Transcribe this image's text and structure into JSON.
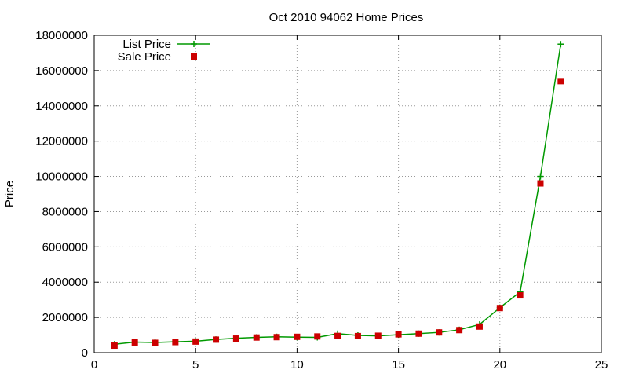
{
  "chart_data": {
    "type": "line",
    "title": "Oct 2010 94062 Home Prices",
    "xlabel": "",
    "ylabel": "Price",
    "xlim": [
      0,
      25
    ],
    "ylim": [
      0,
      18000000
    ],
    "xticks": [
      0,
      5,
      10,
      15,
      20,
      25
    ],
    "yticks": [
      0,
      2000000,
      4000000,
      6000000,
      8000000,
      10000000,
      12000000,
      14000000,
      16000000,
      18000000
    ],
    "grid": true,
    "legend_position": "top-left",
    "series": [
      {
        "name": "List Price",
        "style": "line-plus",
        "color": "#009900",
        "x": [
          1,
          2,
          3,
          4,
          5,
          6,
          7,
          8,
          9,
          10,
          11,
          12,
          13,
          14,
          15,
          16,
          17,
          18,
          19,
          20,
          21,
          22,
          23
        ],
        "values": [
          480000,
          600000,
          580000,
          620000,
          650000,
          750000,
          820000,
          870000,
          900000,
          880000,
          870000,
          1080000,
          980000,
          950000,
          1020000,
          1080000,
          1150000,
          1300000,
          1600000,
          2550000,
          3450000,
          10000000,
          17500000
        ]
      },
      {
        "name": "Sale Price",
        "style": "square",
        "color": "#cc0000",
        "x": [
          1,
          2,
          3,
          4,
          5,
          6,
          7,
          8,
          9,
          10,
          11,
          12,
          13,
          14,
          15,
          16,
          17,
          18,
          19,
          20,
          21,
          22,
          23
        ],
        "values": [
          400000,
          580000,
          560000,
          600000,
          630000,
          740000,
          800000,
          860000,
          880000,
          900000,
          920000,
          950000,
          940000,
          960000,
          1040000,
          1080000,
          1150000,
          1280000,
          1480000,
          2530000,
          3250000,
          9600000,
          15400000
        ]
      }
    ]
  }
}
